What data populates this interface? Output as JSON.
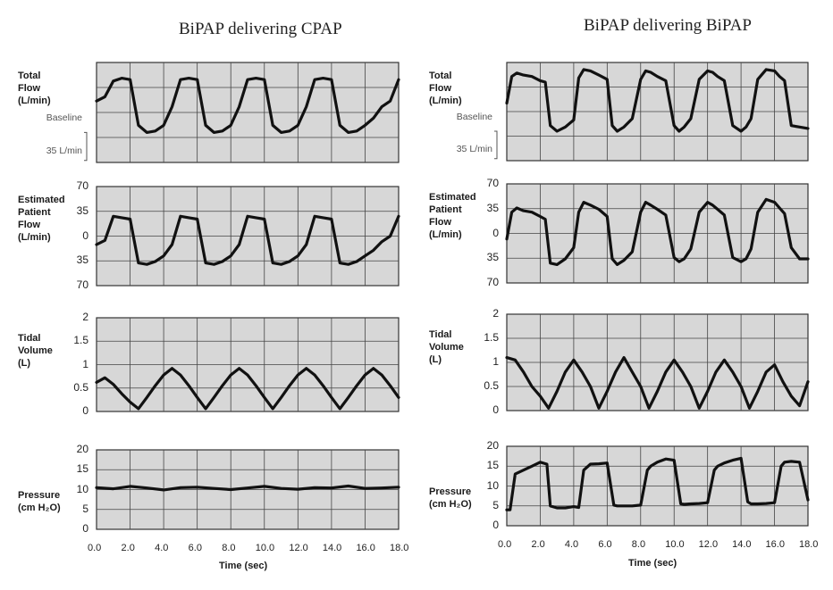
{
  "chart_data": [
    {
      "panel": "left",
      "title": "BiPAP delivering CPAP",
      "xlabel": "Time (sec)",
      "xticks": [
        "0.0",
        "2.0",
        "4.0",
        "6.0",
        "8.0",
        "10.0",
        "12.0",
        "14.0",
        "16.0",
        "18.0"
      ],
      "xlim": [
        0,
        18
      ],
      "subplots": [
        {
          "type": "line",
          "ylabel": [
            "Total",
            "Flow",
            "(L/min)"
          ],
          "yticks": [],
          "side_labels": [
            "Baseline",
            "35 L/min"
          ],
          "ylim": [
            -70,
            70
          ],
          "x": [
            0,
            0.5,
            1,
            1.5,
            2,
            2.5,
            3,
            3.5,
            4,
            4.5,
            5,
            5.5,
            6,
            6.5,
            7,
            7.5,
            8,
            8.5,
            9,
            9.5,
            10,
            10.5,
            11,
            11.5,
            12,
            12.5,
            13,
            13.5,
            14,
            14.5,
            15,
            15.5,
            16,
            16.5,
            17,
            17.5,
            18
          ],
          "y": [
            16,
            22,
            44,
            48,
            46,
            -18,
            -28,
            -26,
            -18,
            8,
            46,
            48,
            46,
            -18,
            -28,
            -26,
            -18,
            8,
            46,
            48,
            46,
            -18,
            -28,
            -26,
            -18,
            8,
            46,
            48,
            46,
            -18,
            -28,
            -26,
            -18,
            -8,
            8,
            16,
            46
          ]
        },
        {
          "type": "line",
          "ylabel": [
            "Estimated",
            "Patient",
            "Flow",
            "(L/min)"
          ],
          "yticks": [
            "70",
            "35",
            "0",
            "35",
            "70"
          ],
          "ylim": [
            -70,
            70
          ],
          "x": [
            0,
            0.5,
            1,
            1.5,
            2,
            2.5,
            3,
            3.5,
            4,
            4.5,
            5,
            5.5,
            6,
            6.5,
            7,
            7.5,
            8,
            8.5,
            9,
            9.5,
            10,
            10.5,
            11,
            11.5,
            12,
            12.5,
            13,
            13.5,
            14,
            14.5,
            15,
            15.5,
            16,
            16.5,
            17,
            17.5,
            18
          ],
          "y": [
            -12,
            -6,
            28,
            26,
            24,
            -38,
            -40,
            -36,
            -28,
            -12,
            28,
            26,
            24,
            -38,
            -40,
            -36,
            -28,
            -12,
            28,
            26,
            24,
            -38,
            -40,
            -36,
            -28,
            -12,
            28,
            26,
            24,
            -38,
            -40,
            -36,
            -28,
            -20,
            -8,
            0,
            28
          ]
        },
        {
          "type": "line",
          "ylabel": [
            "Tidal",
            "Volume",
            "(L)"
          ],
          "yticks": [
            "2",
            "1.5",
            "1",
            "0.5",
            "0"
          ],
          "ylim": [
            0,
            2
          ],
          "x": [
            0,
            0.5,
            1,
            1.5,
            2,
            2.5,
            3,
            3.5,
            4,
            4.5,
            5,
            5.5,
            6,
            6.5,
            7,
            7.5,
            8,
            8.5,
            9,
            9.5,
            10,
            10.5,
            11,
            11.5,
            12,
            12.5,
            13,
            13.5,
            14,
            14.5,
            15,
            15.5,
            16,
            16.5,
            17,
            17.5,
            18
          ],
          "y": [
            0.62,
            0.72,
            0.58,
            0.38,
            0.2,
            0.06,
            0.3,
            0.55,
            0.78,
            0.92,
            0.78,
            0.55,
            0.3,
            0.06,
            0.3,
            0.55,
            0.78,
            0.92,
            0.78,
            0.55,
            0.3,
            0.06,
            0.3,
            0.55,
            0.78,
            0.92,
            0.78,
            0.55,
            0.3,
            0.06,
            0.3,
            0.55,
            0.78,
            0.92,
            0.78,
            0.55,
            0.3
          ]
        },
        {
          "type": "line",
          "ylabel": [
            "Pressure",
            "(cm H₂O)"
          ],
          "yticks": [
            "20",
            "15",
            "10",
            "5",
            "0"
          ],
          "ylim": [
            0,
            20
          ],
          "x": [
            0,
            1,
            2,
            3,
            4,
            5,
            6,
            7,
            8,
            9,
            10,
            11,
            12,
            13,
            14,
            15,
            16,
            17,
            18
          ],
          "y": [
            10.5,
            10.2,
            10.8,
            10.4,
            9.9,
            10.5,
            10.6,
            10.3,
            10.0,
            10.4,
            10.8,
            10.3,
            10.1,
            10.5,
            10.4,
            10.9,
            10.3,
            10.4,
            10.6
          ]
        }
      ]
    },
    {
      "panel": "right",
      "title": "BiPAP delivering BiPAP",
      "xlabel": "Time (sec)",
      "xticks": [
        "0.0",
        "2.0",
        "4.0",
        "6.0",
        "8.0",
        "10.0",
        "12.0",
        "14.0",
        "16.0",
        "18.0"
      ],
      "xlim": [
        0,
        18
      ],
      "subplots": [
        {
          "type": "line",
          "ylabel": [
            "Total",
            "Flow",
            "(L/min)"
          ],
          "yticks": [],
          "side_labels": [
            "Baseline",
            "35 L/min"
          ],
          "ylim": [
            -70,
            70
          ],
          "x": [
            0,
            0.3,
            0.6,
            1,
            1.5,
            2,
            2.3,
            2.6,
            3,
            3.5,
            4,
            4.3,
            4.6,
            5,
            5.5,
            6,
            6.3,
            6.6,
            7,
            7.5,
            8,
            8.3,
            8.6,
            9,
            9.5,
            10,
            10.3,
            10.6,
            11,
            11.5,
            12,
            12.3,
            12.6,
            13,
            13.5,
            14,
            14.3,
            14.6,
            15,
            15.5,
            16,
            16.3,
            16.6,
            17,
            17.5,
            18
          ],
          "y": [
            12,
            50,
            55,
            52,
            50,
            44,
            42,
            -20,
            -28,
            -22,
            -12,
            48,
            60,
            58,
            52,
            46,
            -20,
            -28,
            -22,
            -10,
            46,
            58,
            56,
            50,
            44,
            -20,
            -28,
            -22,
            -10,
            46,
            58,
            56,
            50,
            44,
            -20,
            -28,
            -22,
            -10,
            46,
            60,
            58,
            50,
            44,
            -20,
            -22,
            -24
          ]
        },
        {
          "type": "line",
          "ylabel": [
            "Estimated",
            "Patient",
            "Flow",
            "(L/min)"
          ],
          "yticks": [
            "70",
            "35",
            "0",
            "35",
            "70"
          ],
          "ylim": [
            -70,
            70
          ],
          "x": [
            0,
            0.3,
            0.6,
            1,
            1.5,
            2,
            2.3,
            2.6,
            3,
            3.5,
            4,
            4.3,
            4.6,
            5,
            5.5,
            6,
            6.3,
            6.6,
            7,
            7.5,
            8,
            8.3,
            8.6,
            9,
            9.5,
            10,
            10.3,
            10.6,
            11,
            11.5,
            12,
            12.3,
            12.6,
            13,
            13.5,
            14,
            14.3,
            14.6,
            15,
            15.5,
            16,
            16.3,
            16.6,
            17,
            17.5,
            18
          ],
          "y": [
            -8,
            30,
            36,
            32,
            30,
            24,
            20,
            -42,
            -44,
            -36,
            -20,
            30,
            44,
            40,
            34,
            24,
            -36,
            -44,
            -38,
            -26,
            30,
            44,
            40,
            34,
            26,
            -34,
            -40,
            -36,
            -22,
            30,
            44,
            40,
            34,
            26,
            -34,
            -40,
            -36,
            -22,
            30,
            48,
            44,
            36,
            28,
            -20,
            -36,
            -36
          ]
        },
        {
          "type": "line",
          "ylabel": [
            "Tidal",
            "Volume",
            "(L)"
          ],
          "yticks": [
            "2",
            "1.5",
            "1",
            "0.5",
            "0"
          ],
          "ylim": [
            0,
            2
          ],
          "x": [
            0,
            0.5,
            1,
            1.5,
            2,
            2.5,
            3,
            3.5,
            4,
            4.5,
            5,
            5.5,
            6,
            6.5,
            7,
            7.5,
            8,
            8.5,
            9,
            9.5,
            10,
            10.5,
            11,
            11.5,
            12,
            12.5,
            13,
            13.5,
            14,
            14.5,
            15,
            15.5,
            16,
            16.5,
            17,
            17.5,
            18
          ],
          "y": [
            1.1,
            1.05,
            0.8,
            0.5,
            0.3,
            0.05,
            0.4,
            0.8,
            1.05,
            0.8,
            0.5,
            0.05,
            0.4,
            0.8,
            1.1,
            0.8,
            0.5,
            0.05,
            0.4,
            0.8,
            1.05,
            0.8,
            0.5,
            0.05,
            0.4,
            0.8,
            1.05,
            0.8,
            0.5,
            0.05,
            0.4,
            0.8,
            0.95,
            0.6,
            0.3,
            0.1,
            0.6
          ]
        },
        {
          "type": "line",
          "ylabel": [
            "Pressure",
            "(cm H₂O)"
          ],
          "yticks": [
            "20",
            "15",
            "10",
            "5",
            "0"
          ],
          "ylim": [
            0,
            20
          ],
          "x": [
            0,
            0.2,
            0.5,
            1,
            1.5,
            2,
            2.4,
            2.6,
            3,
            3.5,
            4,
            4.3,
            4.6,
            5,
            5.5,
            6,
            6.4,
            6.6,
            7,
            7.5,
            8,
            8.4,
            8.6,
            9,
            9.5,
            10,
            10.4,
            10.6,
            11,
            11.5,
            12,
            12.4,
            12.6,
            13,
            13.5,
            14,
            14.4,
            14.6,
            15,
            15.5,
            16,
            16.4,
            16.6,
            17,
            17.5,
            18
          ],
          "y": [
            4,
            4,
            13,
            14,
            15,
            16,
            15.5,
            5,
            4.5,
            4.5,
            4.8,
            4.6,
            14,
            15.5,
            15.6,
            15.8,
            5.2,
            5,
            5,
            5,
            5.2,
            14,
            15,
            16,
            16.8,
            16.5,
            5.5,
            5.4,
            5.5,
            5.6,
            5.8,
            14,
            15,
            15.8,
            16.5,
            17,
            6,
            5.5,
            5.5,
            5.6,
            5.8,
            15,
            16,
            16.2,
            16,
            6.5
          ]
        }
      ]
    }
  ]
}
